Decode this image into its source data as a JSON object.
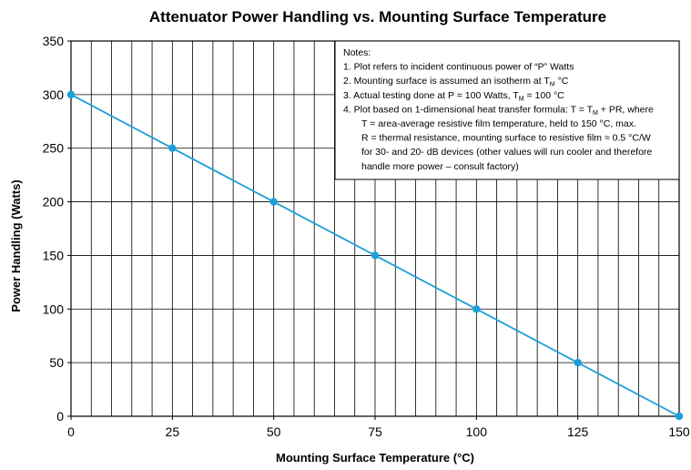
{
  "chart_data": {
    "type": "line",
    "title": "Attenuator Power Handling vs. Mounting Surface Temperature",
    "xlabel": "Mounting Surface Temperature (°C)",
    "ylabel": "Power Handling (Watts)",
    "xlim": [
      0,
      150
    ],
    "ylim": [
      0,
      350
    ],
    "x_ticks": [
      0,
      25,
      50,
      75,
      100,
      125,
      150
    ],
    "y_ticks": [
      0,
      50,
      100,
      150,
      200,
      250,
      300,
      350
    ],
    "x_gridline_step": 5,
    "y_gridline_step": 50,
    "grid": true,
    "series": [
      {
        "x": [
          0,
          25,
          50,
          75,
          100,
          125,
          150
        ],
        "y": [
          300,
          250,
          200,
          150,
          100,
          50,
          0
        ],
        "color": "#1ba0d8",
        "markers": true
      }
    ],
    "notes": {
      "heading": "Notes:",
      "lines": [
        [
          {
            "t": "1. Plot refers to incident continuous power of “P” Watts"
          }
        ],
        [
          {
            "t": "2. Mounting surface is assumed an isotherm at T"
          },
          {
            "t": "M",
            "sub": true
          },
          {
            "t": " °C"
          }
        ],
        [
          {
            "t": "3. Actual testing done at P = 100 Watts, T"
          },
          {
            "t": "M",
            "sub": true
          },
          {
            "t": " = 100 °C"
          }
        ],
        [
          {
            "t": "4. Plot based on 1-dimensional heat transfer formula: T = T"
          },
          {
            "t": "M",
            "sub": true
          },
          {
            "t": " + PR, where"
          }
        ],
        [
          {
            "t": "T = area-average resistive film temperature, held to 150 °C, max.",
            "indent": true
          }
        ],
        [
          {
            "t": "R = thermal resistance, mounting surface to resistive film ≈ 0.5 °C/W",
            "indent": true
          }
        ],
        [
          {
            "t": "for 30- and 20- dB devices (other values will run cooler and therefore",
            "indent": true
          }
        ],
        [
          {
            "t": "handle more power – consult factory)",
            "indent": true
          }
        ]
      ]
    }
  }
}
